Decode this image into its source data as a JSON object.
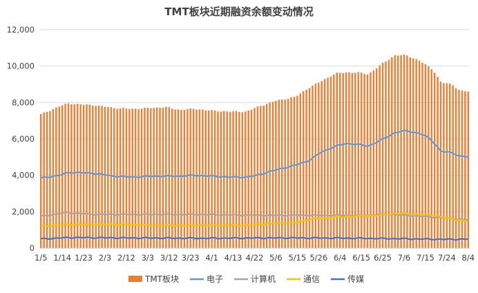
{
  "chart_data": {
    "type": "bar",
    "title": "TMT板块近期融资余额变动情况",
    "ylim": [
      0,
      12000
    ],
    "yticks": [
      "0",
      "2,000",
      "4,000",
      "6,000",
      "8,000",
      "10,000",
      "12,000"
    ],
    "ytick_values": [
      0,
      2000,
      4000,
      6000,
      8000,
      10000,
      12000
    ],
    "xtick_labels": [
      "1/5",
      "1/14",
      "1/23",
      "2/3",
      "2/12",
      "3/3",
      "3/12",
      "3/23",
      "4/1",
      "4/13",
      "4/22",
      "5/6",
      "5/15",
      "5/26",
      "6/4",
      "6/15",
      "6/25",
      "7/6",
      "7/15",
      "7/24",
      "8/4"
    ],
    "num_points": 141,
    "grid": true,
    "legend_position": "bottom",
    "series": [
      {
        "name": "TMT板块",
        "type": "bar",
        "color": "#ED7D31",
        "keypoints": [
          [
            0,
            7350
          ],
          [
            7,
            7800
          ],
          [
            10,
            7950
          ],
          [
            14,
            7900
          ],
          [
            20,
            7850
          ],
          [
            27,
            7700
          ],
          [
            34,
            7650
          ],
          [
            41,
            7700
          ],
          [
            46,
            7750
          ],
          [
            51,
            7600
          ],
          [
            57,
            7650
          ],
          [
            63,
            7550
          ],
          [
            70,
            7500
          ],
          [
            76,
            7500
          ],
          [
            80,
            7750
          ],
          [
            87,
            8100
          ],
          [
            94,
            8300
          ],
          [
            99,
            8800
          ],
          [
            104,
            9200
          ],
          [
            109,
            9600
          ],
          [
            113,
            9650
          ],
          [
            117,
            9650
          ],
          [
            121,
            9550
          ],
          [
            126,
            10100
          ],
          [
            131,
            10600
          ],
          [
            135,
            10600
          ],
          [
            140,
            10300
          ],
          [
            143,
            10000
          ],
          [
            145,
            9800
          ],
          [
            148,
            9100
          ],
          [
            152,
            9000
          ],
          [
            155,
            8650
          ],
          [
            158,
            8600
          ]
        ]
      },
      {
        "name": "电子",
        "type": "line",
        "color": "#5B9BD5",
        "keypoints": [
          [
            0,
            3850
          ],
          [
            7,
            4000
          ],
          [
            10,
            4150
          ],
          [
            14,
            4150
          ],
          [
            20,
            4100
          ],
          [
            27,
            3950
          ],
          [
            34,
            3900
          ],
          [
            41,
            3950
          ],
          [
            46,
            3950
          ],
          [
            51,
            3950
          ],
          [
            57,
            4000
          ],
          [
            63,
            3950
          ],
          [
            70,
            3900
          ],
          [
            76,
            3900
          ],
          [
            80,
            4000
          ],
          [
            87,
            4300
          ],
          [
            94,
            4550
          ],
          [
            99,
            4800
          ],
          [
            104,
            5300
          ],
          [
            109,
            5600
          ],
          [
            113,
            5750
          ],
          [
            117,
            5700
          ],
          [
            121,
            5600
          ],
          [
            126,
            5950
          ],
          [
            131,
            6350
          ],
          [
            135,
            6450
          ],
          [
            140,
            6300
          ],
          [
            143,
            6100
          ],
          [
            145,
            5850
          ],
          [
            148,
            5300
          ],
          [
            152,
            5250
          ],
          [
            155,
            5050
          ],
          [
            158,
            5000
          ]
        ]
      },
      {
        "name": "计算机",
        "type": "line",
        "color": "#A5A5A5",
        "keypoints": [
          [
            0,
            1750
          ],
          [
            5,
            1850
          ],
          [
            9,
            1950
          ],
          [
            20,
            1850
          ],
          [
            40,
            1850
          ],
          [
            60,
            1850
          ],
          [
            80,
            1800
          ],
          [
            100,
            1800
          ],
          [
            115,
            1800
          ],
          [
            120,
            1800
          ],
          [
            125,
            1850
          ],
          [
            131,
            1850
          ],
          [
            135,
            1800
          ],
          [
            140,
            1750
          ],
          [
            145,
            1700
          ],
          [
            150,
            1650
          ],
          [
            158,
            1550
          ]
        ]
      },
      {
        "name": "通信",
        "type": "line",
        "color": "#FFC000",
        "keypoints": [
          [
            0,
            1200
          ],
          [
            10,
            1300
          ],
          [
            20,
            1300
          ],
          [
            30,
            1300
          ],
          [
            40,
            1250
          ],
          [
            60,
            1250
          ],
          [
            76,
            1250
          ],
          [
            85,
            1350
          ],
          [
            95,
            1400
          ],
          [
            100,
            1600
          ],
          [
            110,
            1700
          ],
          [
            115,
            1750
          ],
          [
            125,
            1800
          ],
          [
            131,
            1900
          ],
          [
            135,
            1900
          ],
          [
            140,
            1850
          ],
          [
            145,
            1800
          ],
          [
            150,
            1650
          ],
          [
            158,
            1450
          ]
        ]
      },
      {
        "name": "传媒",
        "type": "line",
        "color": "#4472C4",
        "keypoints": [
          [
            0,
            500
          ],
          [
            8,
            560
          ],
          [
            10,
            580
          ],
          [
            30,
            560
          ],
          [
            60,
            540
          ],
          [
            90,
            560
          ],
          [
            110,
            550
          ],
          [
            130,
            520
          ],
          [
            150,
            480
          ],
          [
            158,
            490
          ]
        ]
      }
    ]
  }
}
